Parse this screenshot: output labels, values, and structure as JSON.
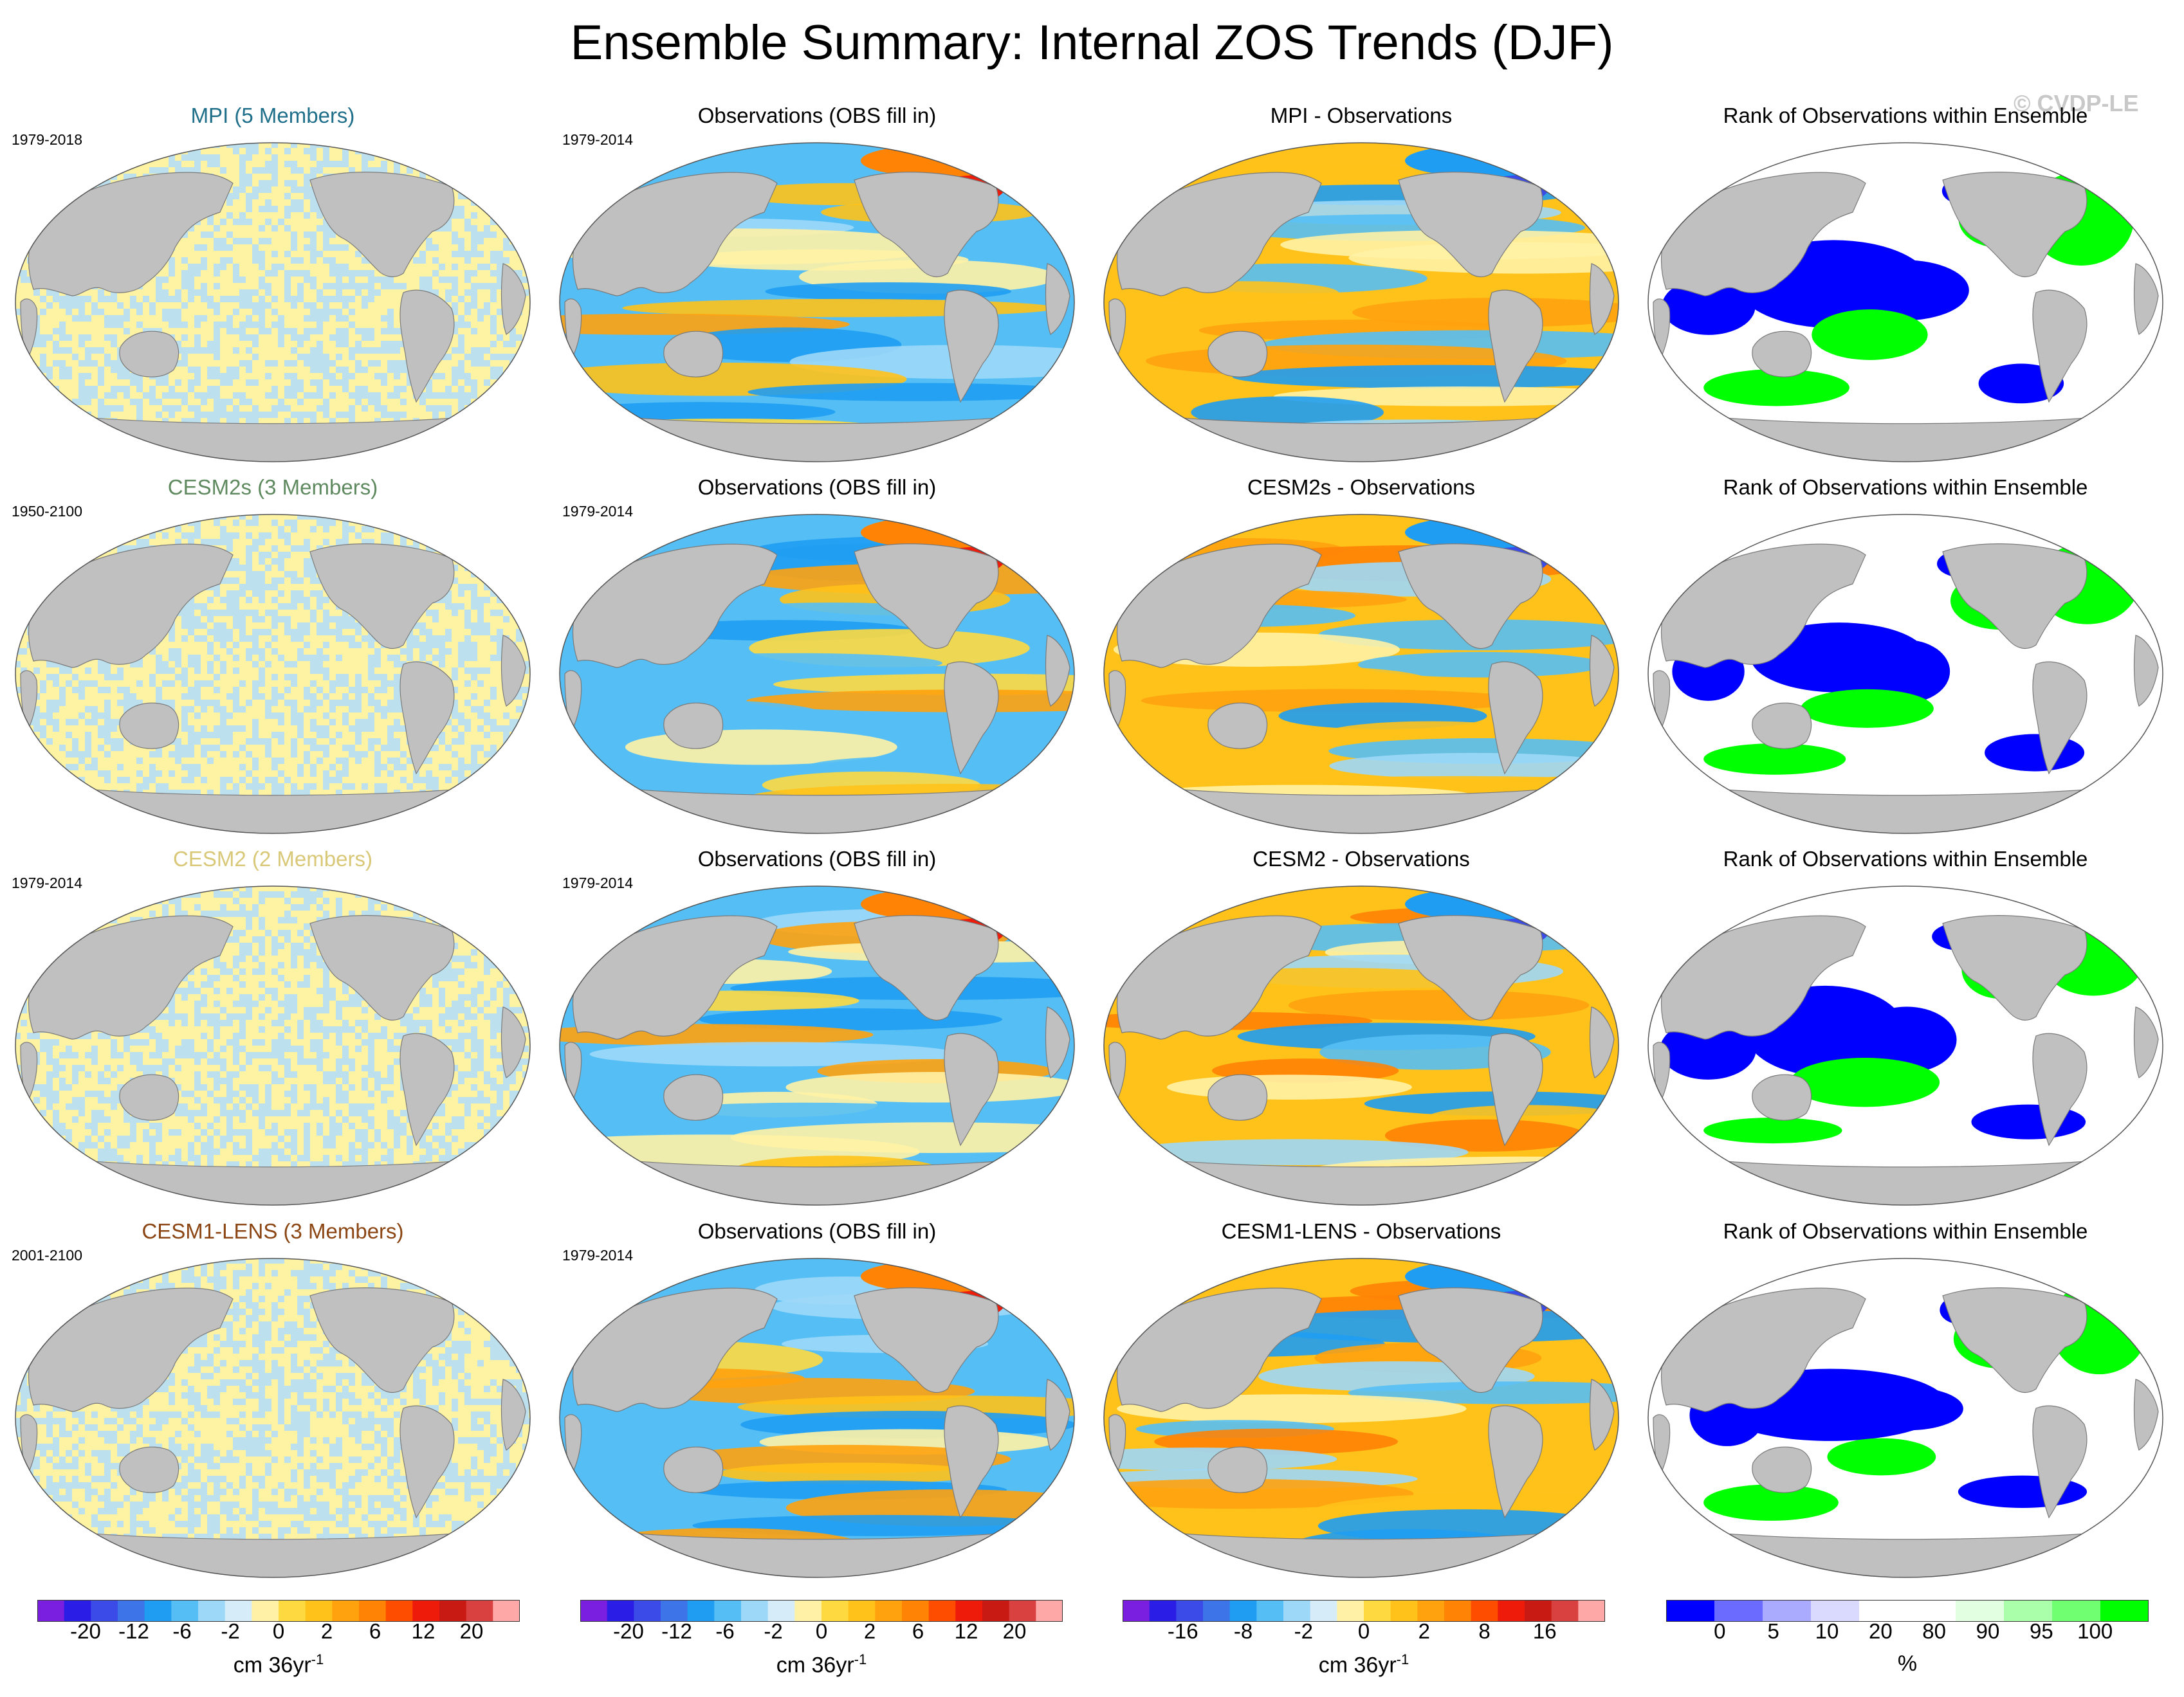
{
  "title": "Ensemble Summary: Internal ZOS Trends (DJF)",
  "watermark": "© CVDP-LE",
  "rows": [
    {
      "model": {
        "title": "MPI (5 Members)",
        "title_color": "#1f6f8b",
        "period": "1979-2018"
      },
      "observations": {
        "title": "Observations (OBS fill in)",
        "period": "1979-2014"
      },
      "difference": {
        "title": "MPI - Observations"
      },
      "rank": {
        "title": "Rank of Observations within Ensemble"
      }
    },
    {
      "model": {
        "title": "CESM2s (3 Members)",
        "title_color": "#5f8a5f",
        "period": "1950-2100"
      },
      "observations": {
        "title": "Observations (OBS fill in)",
        "period": "1979-2014"
      },
      "difference": {
        "title": "CESM2s - Observations"
      },
      "rank": {
        "title": "Rank of Observations within Ensemble"
      }
    },
    {
      "model": {
        "title": "CESM2 (2 Members)",
        "title_color": "#d8c878",
        "period": "1979-2014"
      },
      "observations": {
        "title": "Observations (OBS fill in)",
        "period": "1979-2014"
      },
      "difference": {
        "title": "CESM2 - Observations"
      },
      "rank": {
        "title": "Rank of Observations within Ensemble"
      }
    },
    {
      "model": {
        "title": "CESM1-LENS (3 Members)",
        "title_color": "#8b4513",
        "period": "2001-2100"
      },
      "observations": {
        "title": "Observations (OBS fill in)",
        "period": "1979-2014"
      },
      "difference": {
        "title": "CESM1-LENS - Observations"
      },
      "rank": {
        "title": "Rank of Observations within Ensemble"
      }
    }
  ],
  "colorbars": [
    {
      "label": "cm 36yr",
      "label_sup": "-1",
      "colors": [
        "#7a1fe0",
        "#2a1ee6",
        "#3a4be8",
        "#3d74e8",
        "#1f9df2",
        "#55bff5",
        "#9dd8f8",
        "#d6ecf8",
        "#fff2a6",
        "#ffd940",
        "#ffc21a",
        "#ffa20e",
        "#ff8305",
        "#ff4d00",
        "#ee1a0a",
        "#c81912",
        "#d94040",
        "#ffa8a8"
      ],
      "ticks": [
        "-20",
        "-12",
        "-6",
        "-2",
        "0",
        "2",
        "6",
        "12",
        "20"
      ]
    },
    {
      "label": "cm 36yr",
      "label_sup": "-1",
      "colors": [
        "#7a1fe0",
        "#2a1ee6",
        "#3a4be8",
        "#3d74e8",
        "#1f9df2",
        "#55bff5",
        "#9dd8f8",
        "#d6ecf8",
        "#fff2a6",
        "#ffd940",
        "#ffc21a",
        "#ffa20e",
        "#ff8305",
        "#ff4d00",
        "#ee1a0a",
        "#c81912",
        "#d94040",
        "#ffa8a8"
      ],
      "ticks": [
        "-20",
        "-12",
        "-6",
        "-2",
        "0",
        "2",
        "6",
        "12",
        "20"
      ]
    },
    {
      "label": "cm 36yr",
      "label_sup": "-1",
      "colors": [
        "#7a1fe0",
        "#2a1ee6",
        "#3a4be8",
        "#3d74e8",
        "#1f9df2",
        "#55bff5",
        "#9dd8f8",
        "#d6ecf8",
        "#fff2a6",
        "#ffd940",
        "#ffc21a",
        "#ffa20e",
        "#ff8305",
        "#ff4d00",
        "#ee1a0a",
        "#c81912",
        "#d94040",
        "#ffa8a8"
      ],
      "ticks": [
        "-16",
        "-8",
        "-2",
        "0",
        "2",
        "8",
        "16"
      ]
    },
    {
      "label": "%",
      "label_sup": "",
      "colors": [
        "#0000ff",
        "#6b6bff",
        "#aaaaff",
        "#dadaff",
        "#ffffff",
        "#ffffff",
        "#e2ffe2",
        "#aaffaa",
        "#70ff70",
        "#00ff00"
      ],
      "ticks": [
        "0",
        "5",
        "10",
        "20",
        "80",
        "90",
        "95",
        "100"
      ]
    }
  ],
  "legend_colors": {
    "land": "#c0c0c0",
    "ocean_yellow": "#fdf3a3",
    "ocean_blue": "#bde0ef"
  }
}
